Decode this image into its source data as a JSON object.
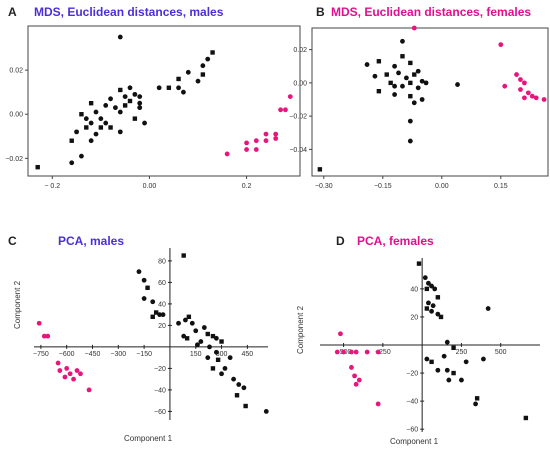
{
  "colors": {
    "male_title": "#4c2fd6",
    "female_title": "#e0108f",
    "group_a": "#111111",
    "group_b": "#e8157c"
  },
  "chart_data": [
    {
      "id": "A",
      "type": "scatter",
      "letter": "A",
      "title": "MDS, Euclidean distances, males",
      "title_color": "#4c2fd6",
      "axes_style": "box",
      "xlim": [
        -0.25,
        0.31
      ],
      "ylim": [
        -0.028,
        0.04
      ],
      "xticks": [
        -0.2,
        0.0,
        0.2
      ],
      "xtick_labels": [
        "− 0.2",
        "0.00",
        "0.2"
      ],
      "yticks": [
        -0.02,
        0.0,
        0.02
      ],
      "ytick_labels": [
        "−0.02",
        "0.00",
        "0.02"
      ],
      "series": [
        {
          "color": "#111111",
          "points": [
            [
              -0.23,
              -0.024
            ],
            [
              -0.16,
              -0.022
            ],
            [
              -0.14,
              -0.019
            ],
            [
              -0.16,
              -0.012
            ],
            [
              -0.12,
              -0.012
            ],
            [
              -0.15,
              -0.008
            ],
            [
              -0.13,
              -0.006
            ],
            [
              -0.11,
              -0.009
            ],
            [
              -0.12,
              -0.004
            ],
            [
              -0.1,
              -0.006
            ],
            [
              -0.1,
              -0.002
            ],
            [
              -0.13,
              -0.002
            ],
            [
              -0.14,
              0.0
            ],
            [
              -0.11,
              0.001
            ],
            [
              -0.09,
              -0.004
            ],
            [
              -0.08,
              -0.006
            ],
            [
              -0.06,
              -0.008
            ],
            [
              -0.09,
              0.004
            ],
            [
              -0.12,
              0.005
            ],
            [
              -0.07,
              0.003
            ],
            [
              -0.06,
              0.001
            ],
            [
              -0.05,
              0.004
            ],
            [
              -0.08,
              0.007
            ],
            [
              -0.05,
              0.008
            ],
            [
              -0.04,
              0.006
            ],
            [
              -0.03,
              0.009
            ],
            [
              -0.02,
              0.008
            ],
            [
              -0.06,
              0.011
            ],
            [
              -0.04,
              0.012
            ],
            [
              -0.02,
              0.005
            ],
            [
              -0.03,
              -0.002
            ],
            [
              -0.01,
              -0.004
            ],
            [
              0.02,
              0.012
            ],
            [
              0.04,
              0.012
            ],
            [
              0.06,
              0.012
            ],
            [
              0.07,
              0.01
            ],
            [
              0.06,
              0.016
            ],
            [
              0.08,
              0.019
            ],
            [
              0.1,
              0.015
            ],
            [
              0.11,
              0.018
            ],
            [
              0.11,
              0.022
            ],
            [
              0.12,
              0.025
            ],
            [
              0.13,
              0.028
            ],
            [
              -0.06,
              0.035
            ],
            [
              -0.02,
              0.003
            ]
          ]
        },
        {
          "color": "#e8157c",
          "points": [
            [
              0.16,
              -0.018
            ],
            [
              0.2,
              -0.016
            ],
            [
              0.22,
              -0.016
            ],
            [
              0.2,
              -0.013
            ],
            [
              0.22,
              -0.012
            ],
            [
              0.24,
              -0.012
            ],
            [
              0.26,
              -0.011
            ],
            [
              0.24,
              -0.009
            ],
            [
              0.26,
              -0.009
            ],
            [
              0.27,
              0.002
            ],
            [
              0.28,
              0.002
            ],
            [
              0.29,
              0.008
            ]
          ]
        }
      ]
    },
    {
      "id": "B",
      "type": "scatter",
      "letter": "B",
      "title": "MDS, Euclidean distances, females",
      "title_color": "#e0108f",
      "axes_style": "box",
      "xlim": [
        -0.33,
        0.27
      ],
      "ylim": [
        -0.056,
        0.033
      ],
      "xticks": [
        -0.3,
        -0.15,
        0.0,
        0.15
      ],
      "xtick_labels": [
        "−0.30",
        "−0.15",
        "0.00",
        "0.15"
      ],
      "yticks": [
        -0.04,
        -0.02,
        0.0,
        0.02
      ],
      "ytick_labels": [
        "−0.04",
        "−0.02",
        "0.00",
        "0.02"
      ],
      "series": [
        {
          "color": "#111111",
          "points": [
            [
              -0.31,
              -0.052
            ],
            [
              -0.08,
              -0.035
            ],
            [
              -0.08,
              -0.023
            ],
            [
              -0.16,
              0.013
            ],
            [
              -0.19,
              0.011
            ],
            [
              -0.17,
              0.004
            ],
            [
              -0.14,
              0.005
            ],
            [
              -0.12,
              0.01
            ],
            [
              -0.1,
              0.025
            ],
            [
              -0.1,
              0.016
            ],
            [
              -0.11,
              0.006
            ],
            [
              -0.09,
              0.003
            ],
            [
              -0.07,
              0.005
            ],
            [
              -0.06,
              0.007
            ],
            [
              -0.05,
              0.001
            ],
            [
              -0.08,
              0.0
            ],
            [
              -0.1,
              -0.002
            ],
            [
              -0.12,
              -0.002
            ],
            [
              -0.16,
              -0.005
            ],
            [
              -0.12,
              -0.007
            ],
            [
              -0.06,
              -0.003
            ],
            [
              -0.08,
              -0.008
            ],
            [
              -0.07,
              -0.012
            ],
            [
              -0.05,
              -0.01
            ],
            [
              -0.13,
              0.0
            ],
            [
              -0.04,
              0.0
            ],
            [
              0.04,
              -0.001
            ],
            [
              -0.08,
              0.012
            ]
          ]
        },
        {
          "color": "#e8157c",
          "points": [
            [
              -0.07,
              0.033
            ],
            [
              0.15,
              0.023
            ],
            [
              0.16,
              -0.002
            ],
            [
              0.19,
              0.005
            ],
            [
              0.2,
              0.002
            ],
            [
              0.21,
              0.0
            ],
            [
              0.2,
              -0.004
            ],
            [
              0.22,
              -0.006
            ],
            [
              0.23,
              -0.008
            ],
            [
              0.21,
              -0.009
            ],
            [
              0.24,
              -0.009
            ],
            [
              0.26,
              -0.01
            ]
          ]
        }
      ]
    },
    {
      "id": "C",
      "type": "scatter",
      "letter": "C",
      "title": "PCA, males",
      "title_color": "#4c2fd6",
      "axes_style": "cross",
      "xlabel": "Component 1",
      "ylabel": "Component 2",
      "xlim": [
        -790,
        570
      ],
      "ylim": [
        -68,
        92
      ],
      "xticks": [
        -750,
        -600,
        -450,
        -300,
        -150,
        150,
        300,
        450
      ],
      "xtick_labels": [
        "−750",
        "−600",
        "−450",
        "−300",
        "−150",
        "150",
        "300",
        "450"
      ],
      "yticks": [
        -60,
        -40,
        -20,
        20,
        40,
        60,
        80
      ],
      "ytick_labels": [
        "−60",
        "−40",
        "−20",
        "20",
        "40",
        "60",
        "80"
      ],
      "series": [
        {
          "color": "#111111",
          "points": [
            [
              80,
              85
            ],
            [
              -180,
              70
            ],
            [
              -150,
              62
            ],
            [
              -130,
              55
            ],
            [
              -150,
              45
            ],
            [
              -100,
              42
            ],
            [
              -80,
              32
            ],
            [
              -60,
              30
            ],
            [
              -40,
              30
            ],
            [
              -100,
              28
            ],
            [
              50,
              22
            ],
            [
              90,
              25
            ],
            [
              110,
              28
            ],
            [
              130,
              22
            ],
            [
              150,
              15
            ],
            [
              100,
              8
            ],
            [
              80,
              10
            ],
            [
              200,
              18
            ],
            [
              220,
              12
            ],
            [
              180,
              5
            ],
            [
              160,
              2
            ],
            [
              250,
              10
            ],
            [
              270,
              8
            ],
            [
              230,
              0
            ],
            [
              300,
              5
            ],
            [
              270,
              -5
            ],
            [
              220,
              -10
            ],
            [
              250,
              -20
            ],
            [
              300,
              -25
            ],
            [
              320,
              -20
            ],
            [
              280,
              -12
            ],
            [
              350,
              -10
            ],
            [
              370,
              -30
            ],
            [
              390,
              -45
            ],
            [
              400,
              -35
            ],
            [
              430,
              -38
            ],
            [
              440,
              -55
            ],
            [
              560,
              -60
            ]
          ]
        },
        {
          "color": "#e8157c",
          "points": [
            [
              -760,
              22
            ],
            [
              -730,
              10
            ],
            [
              -710,
              10
            ],
            [
              -650,
              -15
            ],
            [
              -640,
              -22
            ],
            [
              -610,
              -28
            ],
            [
              -600,
              -20
            ],
            [
              -580,
              -25
            ],
            [
              -560,
              -30
            ],
            [
              -540,
              -22
            ],
            [
              -520,
              -25
            ],
            [
              -470,
              -40
            ]
          ]
        }
      ]
    },
    {
      "id": "D",
      "type": "scatter",
      "letter": "D",
      "title": "PCA, females",
      "title_color": "#e0108f",
      "axes_style": "cross",
      "xlabel": "Component 1",
      "ylabel": "Component 2",
      "xlim": [
        -650,
        750
      ],
      "ylim": [
        -62,
        62
      ],
      "xticks": [
        -500,
        -250,
        250,
        500
      ],
      "xtick_labels": [
        "−500",
        "−250",
        "250",
        "500"
      ],
      "yticks": [
        -60,
        -40,
        -20,
        20,
        40
      ],
      "ytick_labels": [
        "−60",
        "−40",
        "−20",
        "20",
        "40"
      ],
      "series": [
        {
          "color": "#111111",
          "points": [
            [
              -20,
              58
            ],
            [
              20,
              48
            ],
            [
              40,
              44
            ],
            [
              30,
              40
            ],
            [
              60,
              42
            ],
            [
              80,
              40
            ],
            [
              100,
              34
            ],
            [
              40,
              30
            ],
            [
              70,
              28
            ],
            [
              30,
              26
            ],
            [
              60,
              24
            ],
            [
              100,
              22
            ],
            [
              120,
              20
            ],
            [
              420,
              26
            ],
            [
              160,
              2
            ],
            [
              200,
              -2
            ],
            [
              140,
              -8
            ],
            [
              30,
              -10
            ],
            [
              60,
              -12
            ],
            [
              100,
              -18
            ],
            [
              160,
              -18
            ],
            [
              200,
              -20
            ],
            [
              170,
              -25
            ],
            [
              250,
              -25
            ],
            [
              350,
              -38
            ],
            [
              340,
              -42
            ],
            [
              280,
              -12
            ],
            [
              660,
              -52
            ],
            [
              390,
              -10
            ]
          ]
        },
        {
          "color": "#e8157c",
          "points": [
            [
              -520,
              8
            ],
            [
              -540,
              -5
            ],
            [
              -500,
              -5
            ],
            [
              -450,
              -5
            ],
            [
              -420,
              -5
            ],
            [
              -350,
              -5
            ],
            [
              -280,
              -5
            ],
            [
              -450,
              -16
            ],
            [
              -430,
              -22
            ],
            [
              -420,
              -28
            ],
            [
              -400,
              -25
            ],
            [
              -280,
              -42
            ]
          ]
        }
      ]
    }
  ]
}
